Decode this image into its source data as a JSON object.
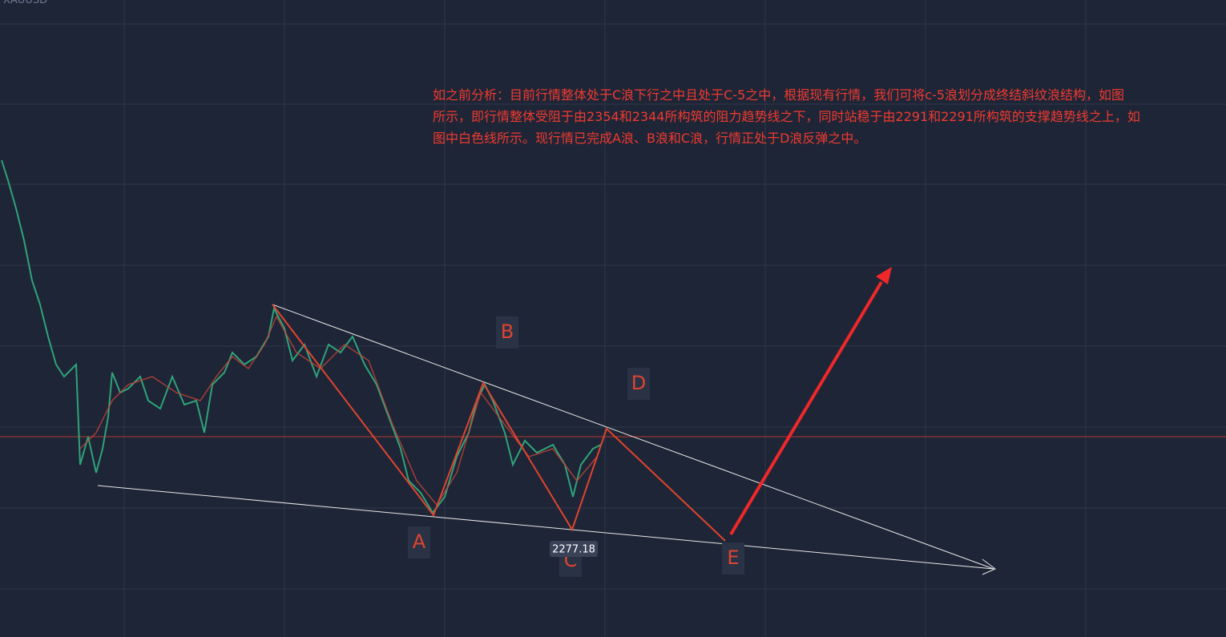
{
  "header": {
    "symbol": "XAUUSD"
  },
  "annotation": {
    "lines": [
      "如之前分析：目前行情整体处于C浪下行之中且处于C-5之中，根据现有行情，我们可将c-5浪划分成终结斜纹浪结构，如图",
      "所示，即行情整体受阻于由2354和2344所构筑的阻力趋势线之下，同时站稳于由2291和2291所构筑的支撑趋势线之上，如",
      "图中白色线所示。现行情已完成A浪、B浪和C浪，行情正处于D浪反弹之中。"
    ]
  },
  "waves": {
    "labels": [
      "A",
      "B",
      "C",
      "D",
      "E"
    ]
  },
  "price_label": "2277.18"
}
